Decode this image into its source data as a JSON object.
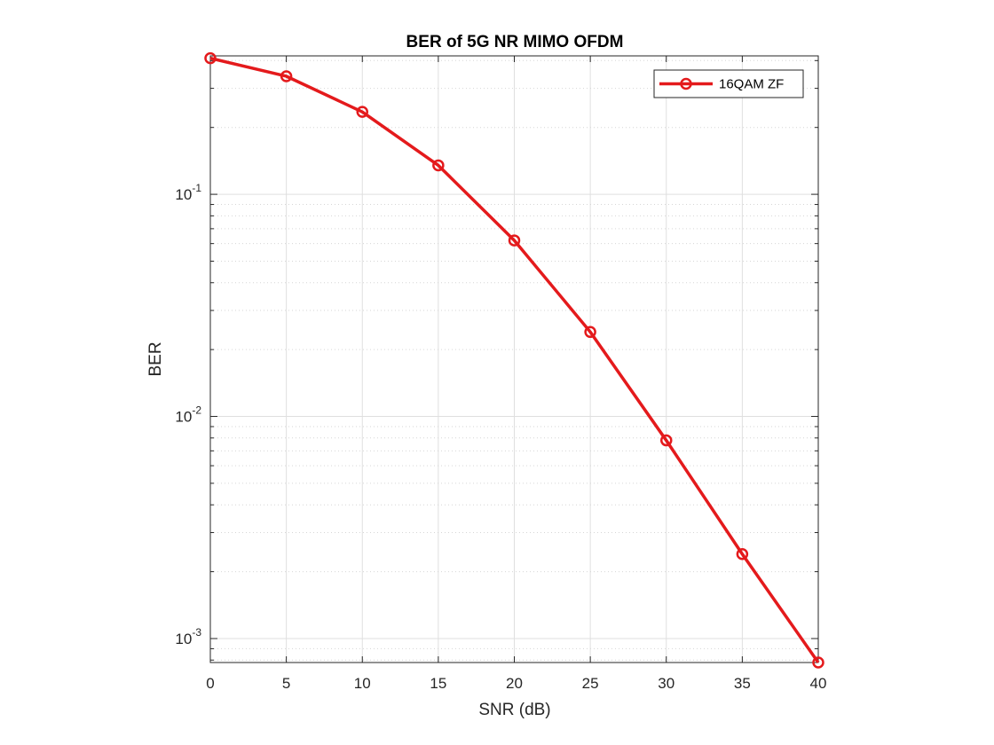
{
  "chart_data": {
    "type": "line",
    "title": "BER of 5G NR MIMO OFDM",
    "xlabel": "SNR (dB)",
    "ylabel": "BER",
    "xscale": "linear",
    "yscale": "log",
    "xlim": [
      0,
      40
    ],
    "ylim": [
      0.00078,
      0.42
    ],
    "xticks": [
      0,
      5,
      10,
      15,
      20,
      25,
      30,
      35,
      40
    ],
    "xtick_labels": [
      "0",
      "5",
      "10",
      "15",
      "20",
      "25",
      "30",
      "35",
      "40"
    ],
    "yticks": [
      {
        "value": 0.1,
        "base": "10",
        "exponent": "-1"
      },
      {
        "value": 0.01,
        "base": "10",
        "exponent": "-2"
      },
      {
        "value": 0.001,
        "base": "10",
        "exponent": "-3"
      }
    ],
    "grid": true,
    "minor_grid": true,
    "legend_position": "top-right",
    "series": [
      {
        "name": "16QAM ZF",
        "color": "#e41a1c",
        "marker": "circle",
        "x": [
          0,
          5,
          10,
          15,
          20,
          25,
          30,
          35,
          40
        ],
        "y": [
          0.41,
          0.34,
          0.235,
          0.135,
          0.062,
          0.024,
          0.0078,
          0.0024,
          0.00078
        ]
      }
    ]
  }
}
